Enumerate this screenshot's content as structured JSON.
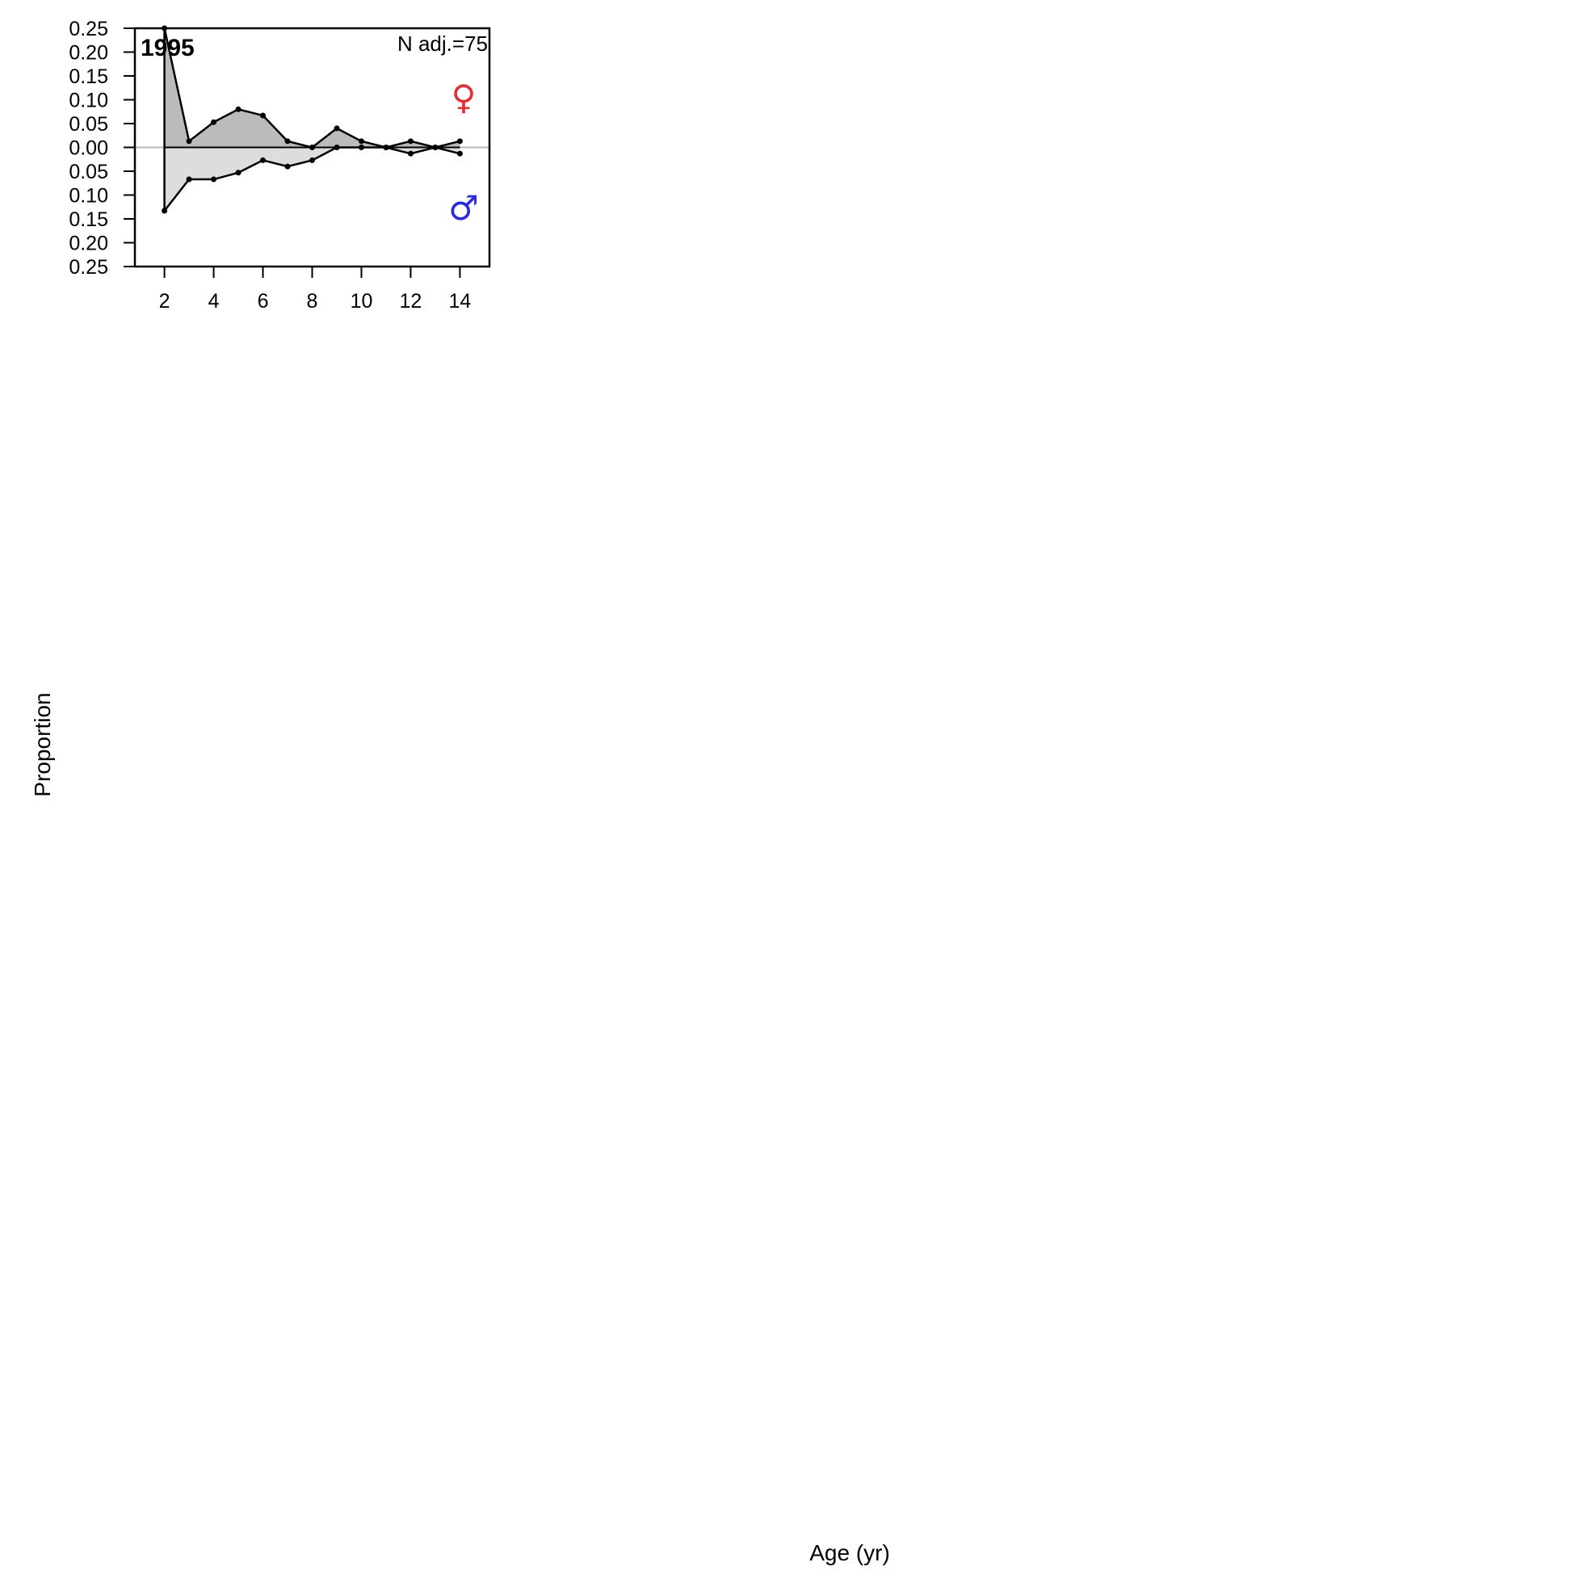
{
  "chart_data": {
    "type": "area",
    "title": "1995",
    "annotation": "N adj.=75",
    "xlabel": "Age (yr)",
    "ylabel": "Proportion",
    "x": [
      2,
      3,
      4,
      5,
      6,
      7,
      8,
      9,
      10,
      11,
      12,
      13,
      14
    ],
    "xlim": [
      0.8,
      15.2
    ],
    "ylim": [
      -0.25,
      0.25
    ],
    "x_ticks": [
      2,
      4,
      6,
      8,
      10,
      12,
      14
    ],
    "x_tick_labels": [
      "2",
      "4",
      "6",
      "8",
      "10",
      "12",
      "14"
    ],
    "y_ticks": [
      0.25,
      0.2,
      0.15,
      0.1,
      0.05,
      0.0,
      -0.05,
      -0.1,
      -0.15,
      -0.2,
      -0.25
    ],
    "y_tick_labels": [
      "0.25",
      "0.20",
      "0.15",
      "0.10",
      "0.05",
      "0.00",
      "0.05",
      "0.10",
      "0.15",
      "0.20",
      "0.25"
    ],
    "series": [
      {
        "name": "♀",
        "color": "#e0303a",
        "fill": "#bbbbbb",
        "direction": "up",
        "obs": [
          0.25,
          0.013,
          0.053,
          0.08,
          0.067,
          0.013,
          0.0,
          0.04,
          0.013,
          0.0,
          0.013,
          0.0,
          0.013
        ]
      },
      {
        "name": "♂",
        "color": "#2b2bd9",
        "fill": "#dddddd",
        "direction": "down",
        "obs": [
          0.133,
          0.067,
          0.067,
          0.053,
          0.027,
          0.04,
          0.027,
          0.0,
          0.0,
          0.0,
          0.013,
          0.0,
          0.013
        ]
      }
    ],
    "grid": false,
    "legend": "right"
  }
}
